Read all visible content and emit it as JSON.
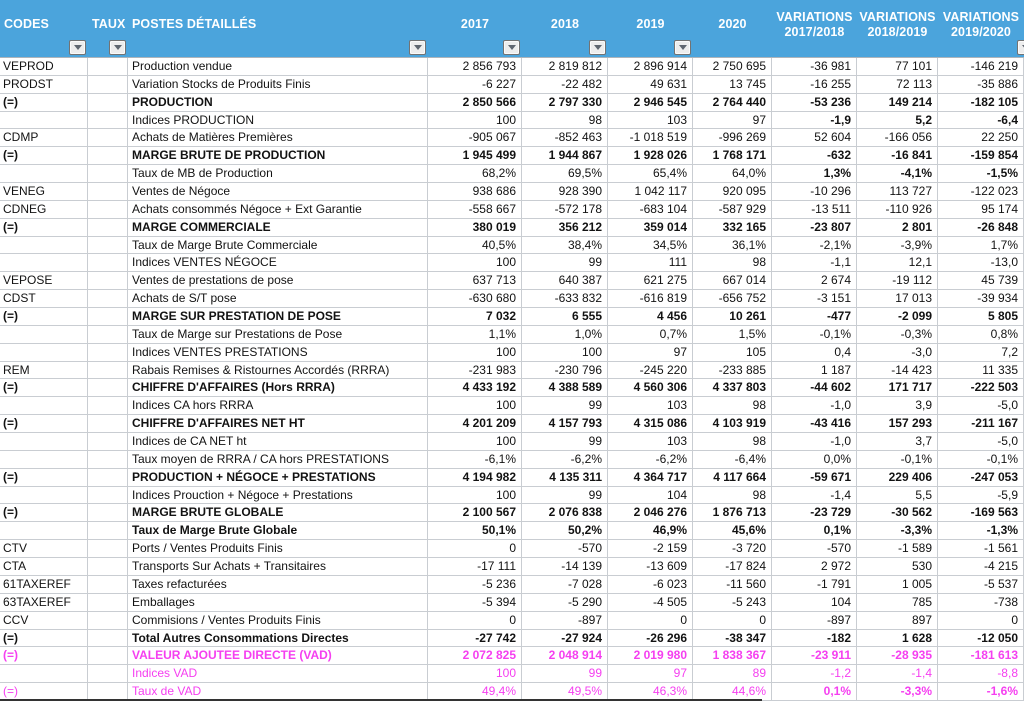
{
  "colors": {
    "blue": "#4BA4DC",
    "pink": "#F53FF0",
    "grid": "#C9CDD2"
  },
  "header": {
    "columns": [
      {
        "id": "codes",
        "label": "CODES",
        "align": "left",
        "filter": true
      },
      {
        "id": "taux",
        "label": "TAUX",
        "align": "left",
        "filter": true
      },
      {
        "id": "postes-detailles",
        "label": "POSTES DÉTAILLÉS",
        "align": "left",
        "filter": true
      },
      {
        "id": "2017",
        "label": "2017",
        "align": "center",
        "filter": true
      },
      {
        "id": "2018",
        "label": "2018",
        "align": "center",
        "filter": true
      },
      {
        "id": "2019",
        "label": "2019",
        "align": "center",
        "filter": true
      },
      {
        "id": "2020",
        "label": "2020",
        "align": "center",
        "filter": false
      },
      {
        "id": "variations-2017-2018",
        "label": "VARIATIONS\n2017/2018",
        "align": "center",
        "filter": false
      },
      {
        "id": "variations-2018-2019",
        "label": "VARIATIONS\n2018/2019",
        "align": "center",
        "filter": false
      },
      {
        "id": "variations-2019-2020",
        "label": "VARIATIONS\n2019/2020",
        "align": "center",
        "filter": "partial"
      }
    ]
  },
  "rows": [
    {
      "code": "VEPROD",
      "label": "Production vendue",
      "values": [
        "2 856 793",
        "2 819 812",
        "2 896 914",
        "2 750 695",
        "-36 981",
        "77 101",
        "-146 219"
      ]
    },
    {
      "code": "PRODST",
      "label": "Variation Stocks de Produits Finis",
      "values": [
        "-6 227",
        "-22 482",
        "49 631",
        "13 745",
        "-16 255",
        "72 113",
        "-35 886"
      ]
    },
    {
      "code": "(=)",
      "label": "PRODUCTION",
      "bold": true,
      "values": [
        "2 850 566",
        "2 797 330",
        "2 946 545",
        "2 764 440",
        "-53 236",
        "149 214",
        "-182 105"
      ]
    },
    {
      "code": "",
      "label": "Indices PRODUCTION",
      "bold_variations": true,
      "values": [
        "100",
        "98",
        "103",
        "97",
        "-1,9",
        "5,2",
        "-6,4"
      ]
    },
    {
      "code": "CDMP",
      "label": "Achats de Matières Premières",
      "values": [
        "-905 067",
        "-852 463",
        "-1 018 519",
        "-996 269",
        "52 604",
        "-166 056",
        "22 250"
      ]
    },
    {
      "code": "(=)",
      "label": "MARGE BRUTE DE PRODUCTION",
      "bold": true,
      "values": [
        "1 945 499",
        "1 944 867",
        "1 928 026",
        "1 768 171",
        "-632",
        "-16 841",
        "-159 854"
      ]
    },
    {
      "code": "",
      "label": "Taux de MB de Production",
      "bold_variations": true,
      "values": [
        "68,2%",
        "69,5%",
        "65,4%",
        "64,0%",
        "1,3%",
        "-4,1%",
        "-1,5%"
      ]
    },
    {
      "code": "VENEG",
      "label": "Ventes de Négoce",
      "values": [
        "938 686",
        "928 390",
        "1 042 117",
        "920 095",
        "-10 296",
        "113 727",
        "-122 023"
      ]
    },
    {
      "code": "CDNEG",
      "label": "Achats consommés Négoce + Ext Garantie",
      "values": [
        "-558 667",
        "-572 178",
        "-683 104",
        "-587 929",
        "-13 511",
        "-110 926",
        "95 174"
      ]
    },
    {
      "code": "(=)",
      "label": "MARGE COMMERCIALE",
      "bold": true,
      "values": [
        "380 019",
        "356 212",
        "359 014",
        "332 165",
        "-23 807",
        "2 801",
        "-26 848"
      ]
    },
    {
      "code": "",
      "label": "Taux de Marge Brute Commerciale",
      "values": [
        "40,5%",
        "38,4%",
        "34,5%",
        "36,1%",
        "-2,1%",
        "-3,9%",
        "1,7%"
      ]
    },
    {
      "code": "",
      "label": "Indices VENTES NÉGOCE",
      "values": [
        "100",
        "99",
        "111",
        "98",
        "-1,1",
        "12,1",
        "-13,0"
      ]
    },
    {
      "code": "VEPOSE",
      "label": "Ventes de prestations de pose",
      "values": [
        "637 713",
        "640 387",
        "621 275",
        "667 014",
        "2 674",
        "-19 112",
        "45 739"
      ]
    },
    {
      "code": "CDST",
      "label": "Achats de S/T pose",
      "values": [
        "-630 680",
        "-633 832",
        "-616 819",
        "-656 752",
        "-3 151",
        "17 013",
        "-39 934"
      ]
    },
    {
      "code": "(=)",
      "label": "MARGE SUR PRESTATION DE POSE",
      "bold": true,
      "values": [
        "7 032",
        "6 555",
        "4 456",
        "10 261",
        "-477",
        "-2 099",
        "5 805"
      ]
    },
    {
      "code": "",
      "label": "Taux de Marge sur Prestations de Pose",
      "values": [
        "1,1%",
        "1,0%",
        "0,7%",
        "1,5%",
        "-0,1%",
        "-0,3%",
        "0,8%"
      ]
    },
    {
      "code": "",
      "label": "Indices VENTES PRESTATIONS",
      "values": [
        "100",
        "100",
        "97",
        "105",
        "0,4",
        "-3,0",
        "7,2"
      ]
    },
    {
      "code": "REM",
      "label": "Rabais Remises & Ristournes Accordés (RRRA)",
      "values": [
        "-231 983",
        "-230 796",
        "-245 220",
        "-233 885",
        "1 187",
        "-14 423",
        "11 335"
      ]
    },
    {
      "code": "(=)",
      "label": "CHIFFRE D'AFFAIRES (Hors RRRA)",
      "bold": true,
      "values": [
        "4 433 192",
        "4 388 589",
        "4 560 306",
        "4 337 803",
        "-44 602",
        "171 717",
        "-222 503"
      ]
    },
    {
      "code": "",
      "label": "Indices CA hors RRRA",
      "values": [
        "100",
        "99",
        "103",
        "98",
        "-1,0",
        "3,9",
        "-5,0"
      ]
    },
    {
      "code": "(=)",
      "label": "CHIFFRE D'AFFAIRES NET HT",
      "bold": true,
      "values": [
        "4 201 209",
        "4 157 793",
        "4 315 086",
        "4 103 919",
        "-43 416",
        "157 293",
        "-211 167"
      ]
    },
    {
      "code": "",
      "label": "Indices de CA NET ht",
      "values": [
        "100",
        "99",
        "103",
        "98",
        "-1,0",
        "3,7",
        "-5,0"
      ]
    },
    {
      "code": "",
      "label": "Taux moyen de RRRA / CA hors PRESTATIONS",
      "values": [
        "-6,1%",
        "-6,2%",
        "-6,2%",
        "-6,4%",
        "0,0%",
        "-0,1%",
        "-0,1%"
      ]
    },
    {
      "code": "(=)",
      "label": "PRODUCTION + NÉGOCE + PRESTATIONS",
      "bold": true,
      "values": [
        "4 194 982",
        "4 135 311",
        "4 364 717",
        "4 117 664",
        "-59 671",
        "229 406",
        "-247 053"
      ]
    },
    {
      "code": "",
      "label": "Indices Prouction + Négoce + Prestations",
      "values": [
        "100",
        "99",
        "104",
        "98",
        "-1,4",
        "5,5",
        "-5,9"
      ]
    },
    {
      "code": "(=)",
      "label": "MARGE BRUTE GLOBALE",
      "bold": true,
      "values": [
        "2 100 567",
        "2 076 838",
        "2 046 276",
        "1 876 713",
        "-23 729",
        "-30 562",
        "-169 563"
      ]
    },
    {
      "code": "",
      "label": "Taux de Marge Brute Globale",
      "bold": true,
      "values": [
        "50,1%",
        "50,2%",
        "46,9%",
        "45,6%",
        "0,1%",
        "-3,3%",
        "-1,3%"
      ]
    },
    {
      "code": "CTV",
      "label": "Ports / Ventes Produits Finis",
      "values": [
        "0",
        "-570",
        "-2 159",
        "-3 720",
        "-570",
        "-1 589",
        "-1 561"
      ]
    },
    {
      "code": "CTA",
      "label": "Transports Sur Achats + Transitaires",
      "values": [
        "-17 111",
        "-14 139",
        "-13 609",
        "-17 824",
        "2 972",
        "530",
        "-4 215"
      ]
    },
    {
      "code": "61TAXEREF",
      "label": "Taxes refacturées",
      "values": [
        "-5 236",
        "-7 028",
        "-6 023",
        "-11 560",
        "-1 791",
        "1 005",
        "-5 537"
      ]
    },
    {
      "code": "63TAXEREF",
      "label": "Emballages",
      "values": [
        "-5 394",
        "-5 290",
        "-4 505",
        "-5 243",
        "104",
        "785",
        "-738"
      ]
    },
    {
      "code": "CCV",
      "label": "Commisions / Ventes Produits Finis",
      "values": [
        "0",
        "-897",
        "0",
        "0",
        "-897",
        "897",
        "0"
      ]
    },
    {
      "code": "(=)",
      "label": "Total Autres Consommations Directes",
      "bold": true,
      "values": [
        "-27 742",
        "-27 924",
        "-26 296",
        "-38 347",
        "-182",
        "1 628",
        "-12 050"
      ]
    },
    {
      "code": "(=)",
      "label": "VALEUR AJOUTEE DIRECTE (VAD)",
      "bold": true,
      "pink": true,
      "values": [
        "2 072 825",
        "2 048 914",
        "2 019 980",
        "1 838 367",
        "-23 911",
        "-28 935",
        "-181 613"
      ]
    },
    {
      "code": "",
      "label": "Indices VAD",
      "pink": true,
      "values": [
        "100",
        "99",
        "97",
        "89",
        "-1,2",
        "-1,4",
        "-8,8"
      ]
    },
    {
      "code": "(=)",
      "label": "Taux de VAD",
      "pink": true,
      "bold_variations": true,
      "values": [
        "49,4%",
        "49,5%",
        "46,3%",
        "44,6%",
        "0,1%",
        "-3,3%",
        "-1,6%"
      ]
    }
  ]
}
